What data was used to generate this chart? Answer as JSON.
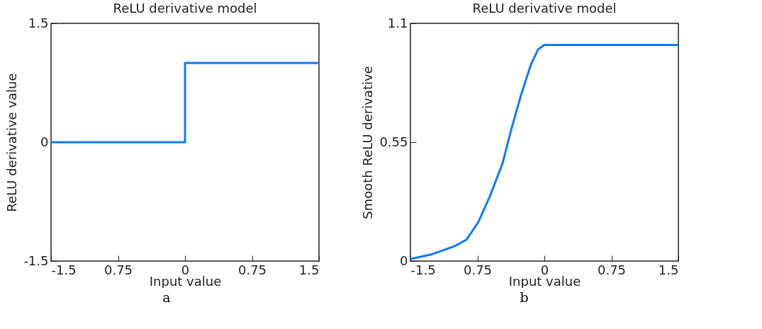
{
  "chart_data": [
    {
      "type": "step",
      "title": "ReLU derivative model",
      "xlabel": "Input value",
      "ylabel": "ReLU derivative value",
      "annotations": [
        "a"
      ],
      "x": [
        -1.5,
        0,
        1.5
      ],
      "series": [
        {
          "color": "#0a7df5",
          "values": [
            0,
            1,
            1
          ]
        }
      ],
      "xlim": [
        -1.5,
        1.5
      ],
      "xticks": [
        -1.5,
        {
          "value": -0.75,
          "label": "0.75"
        },
        0,
        0.75,
        1.5
      ],
      "ylim": [
        -1.5,
        1.5
      ],
      "yticks": [
        -1.5,
        0,
        1.5
      ],
      "grid": false,
      "legend": false
    },
    {
      "type": "line",
      "title": "ReLU derivative model",
      "xlabel": "Input value",
      "ylabel": "Smooth ReLU derivative",
      "annotations": [
        "b"
      ],
      "x": [
        -1.5,
        -1.27,
        -1.0,
        -0.87,
        -0.74,
        -0.61,
        -0.47,
        -0.37,
        -0.26,
        -0.15,
        -0.07,
        0,
        1.5
      ],
      "series": [
        {
          "color": "#0a7df5",
          "values": [
            0.01,
            0.03,
            0.07,
            0.1,
            0.18,
            0.3,
            0.45,
            0.61,
            0.77,
            0.91,
            0.98,
            1.0,
            1.0
          ]
        }
      ],
      "xlim": [
        -1.5,
        1.5
      ],
      "xticks": [
        -1.5,
        {
          "value": -0.75,
          "label": "0.75"
        },
        0,
        0.75,
        1.5
      ],
      "ylim": [
        0,
        1.1
      ],
      "yticks": [
        0,
        0.55,
        1.1
      ],
      "grid": false,
      "legend": false
    }
  ]
}
